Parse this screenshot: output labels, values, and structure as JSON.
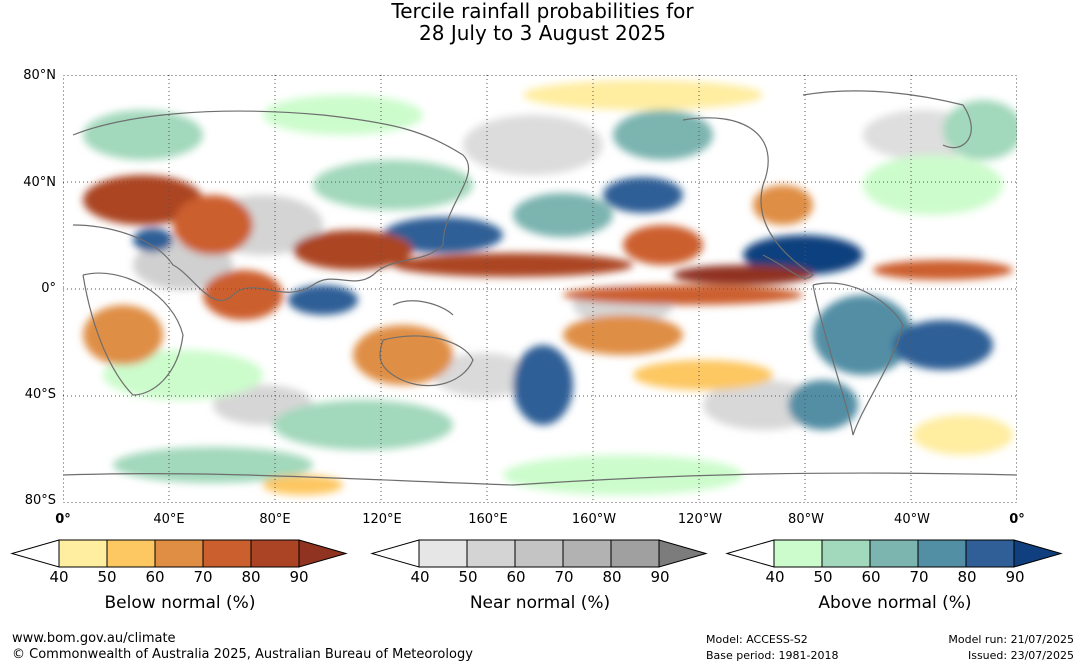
{
  "title": {
    "line1": "Tercile rainfall probabilities for",
    "line2": "28 July to 3 August 2025"
  },
  "map": {
    "lat_labels": [
      "80°N",
      "40°N",
      "0°",
      "40°S",
      "80°S"
    ],
    "lon_labels": [
      "0°",
      "40°E",
      "80°E",
      "120°E",
      "160°E",
      "160°W",
      "120°W",
      "80°W",
      "40°W",
      "0°"
    ]
  },
  "legends": [
    {
      "id": "below",
      "title": "Below normal (%)",
      "ticks": [
        "40",
        "50",
        "60",
        "70",
        "80",
        "90"
      ],
      "colors": [
        "#ffeda0",
        "#fdc762",
        "#df8e44",
        "#cc5f2e",
        "#ab4424",
        "#903320"
      ]
    },
    {
      "id": "near",
      "title": "Near normal (%)",
      "ticks": [
        "40",
        "50",
        "60",
        "70",
        "80",
        "90"
      ],
      "colors": [
        "#e6e6e6",
        "#d4d4d4",
        "#c4c4c4",
        "#b2b2b2",
        "#a0a0a0",
        "#7c7c7c"
      ]
    },
    {
      "id": "above",
      "title": "Above normal (%)",
      "ticks": [
        "40",
        "50",
        "60",
        "70",
        "80",
        "90"
      ],
      "colors": [
        "#ccfccc",
        "#a2d8bb",
        "#7cb4b0",
        "#528ea4",
        "#2f5f96",
        "#0f3f7e"
      ]
    }
  ],
  "footer": {
    "website": "www.bom.gov.au/climate",
    "copyright": "© Commonwealth of Australia 2025, Australian Bureau of Meteorology",
    "model": "Model: ACCESS-S2",
    "base_period": "Base period: 1981-2018",
    "model_run": "Model run: 21/07/2025",
    "issued": "Issued: 23/07/2025"
  }
}
